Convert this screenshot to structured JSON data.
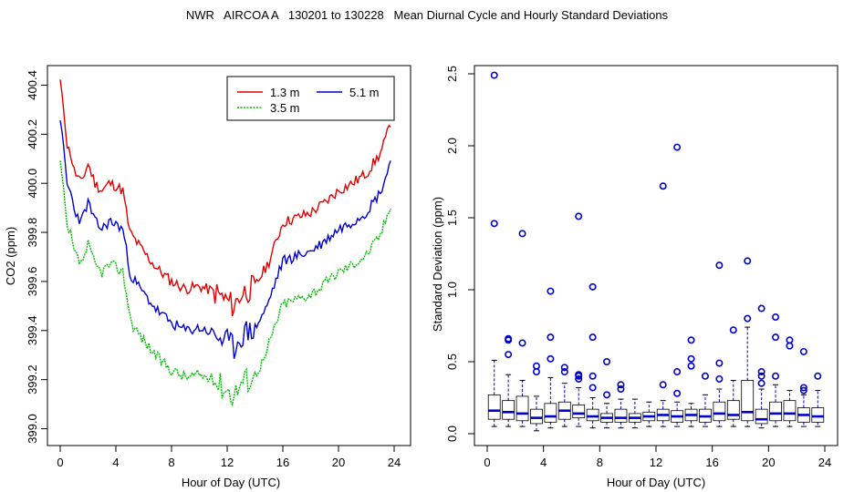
{
  "title": "NWR   AIRCOA A   130201 to 130228   Mean Diurnal Cycle and Hourly Standard Deviations",
  "colors": {
    "red": "#e00000",
    "blue": "#0000cc",
    "green": "#00bb00",
    "box": "#0000cc",
    "axis": "#000000"
  },
  "chart_data": [
    {
      "type": "line",
      "xlabel": "Hour of Day (UTC)",
      "ylabel": "CO2 (ppm)",
      "xlim": [
        0,
        24
      ],
      "ylim": [
        398.95,
        400.45
      ],
      "xticks": [
        "0",
        "4",
        "8",
        "12",
        "16",
        "20",
        "24"
      ],
      "yticks": [
        "399.0",
        "399.2",
        "399.4",
        "399.6",
        "399.8",
        "400.0",
        "400.2",
        "400.4"
      ],
      "legend": {
        "position": "top-right",
        "entries": [
          "1.3 m",
          "5.1 m",
          "3.5 m"
        ]
      },
      "anchors": [
        [
          0.0,
          400.42
        ],
        [
          0.25,
          400.3
        ],
        [
          0.5,
          400.15
        ],
        [
          0.75,
          400.12
        ],
        [
          1.0,
          400.05
        ],
        [
          1.5,
          400.0
        ],
        [
          2.0,
          400.08
        ],
        [
          2.5,
          400.0
        ],
        [
          3.0,
          399.97
        ],
        [
          3.5,
          400.0
        ],
        [
          4.0,
          399.99
        ],
        [
          4.5,
          399.97
        ],
        [
          5.0,
          399.8
        ],
        [
          6.0,
          399.72
        ],
        [
          7.0,
          399.65
        ],
        [
          8.0,
          399.6
        ],
        [
          9.0,
          399.57
        ],
        [
          10.0,
          399.58
        ],
        [
          11.0,
          399.56
        ],
        [
          12.0,
          399.52
        ],
        [
          12.5,
          399.5
        ],
        [
          13.0,
          399.55
        ],
        [
          14.0,
          399.58
        ],
        [
          15.0,
          399.68
        ],
        [
          16.0,
          399.84
        ],
        [
          17.0,
          399.86
        ],
        [
          18.0,
          399.88
        ],
        [
          19.0,
          399.92
        ],
        [
          20.0,
          399.97
        ],
        [
          21.0,
          400.0
        ],
        [
          22.0,
          400.04
        ],
        [
          23.0,
          400.12
        ],
        [
          23.5,
          400.2
        ],
        [
          23.75,
          400.25
        ]
      ],
      "series": [
        {
          "name": "1.3 m",
          "color": "#e00000",
          "offset": 0.0,
          "seed": 11
        },
        {
          "name": "5.1 m",
          "color": "#0000cc",
          "offset": -0.17,
          "seed": 23
        },
        {
          "name": "3.5 m",
          "color": "#00bb00",
          "offset": -0.36,
          "seed": 37
        }
      ]
    },
    {
      "type": "boxplot",
      "xlabel": "Hour of Day (UTC)",
      "ylabel": "Standard Deviation (ppm)",
      "xlim": [
        0,
        24
      ],
      "ylim": [
        -0.05,
        2.6
      ],
      "xticks": [
        "0",
        "4",
        "8",
        "12",
        "16",
        "20",
        "24"
      ],
      "yticks": [
        "0.0",
        "0.5",
        "1.0",
        "1.5",
        "2.0",
        "2.5"
      ],
      "boxes": [
        {
          "hour": 0.5,
          "min": 0.05,
          "q1": 0.1,
          "median": 0.16,
          "q3": 0.27,
          "max": 0.51,
          "outliers": [
            1.46,
            2.49
          ]
        },
        {
          "hour": 1.5,
          "min": 0.05,
          "q1": 0.1,
          "median": 0.15,
          "q3": 0.23,
          "max": 0.41,
          "outliers": [
            0.55,
            0.65,
            0.66
          ]
        },
        {
          "hour": 2.5,
          "min": 0.05,
          "q1": 0.09,
          "median": 0.14,
          "q3": 0.26,
          "max": 0.37,
          "outliers": [
            0.63,
            1.39
          ]
        },
        {
          "hour": 3.5,
          "min": 0.02,
          "q1": 0.07,
          "median": 0.11,
          "q3": 0.17,
          "max": 0.26,
          "outliers": [
            0.43,
            0.47
          ]
        },
        {
          "hour": 4.5,
          "min": 0.04,
          "q1": 0.08,
          "median": 0.12,
          "q3": 0.21,
          "max": 0.39,
          "outliers": [
            0.52,
            0.67,
            0.99
          ]
        },
        {
          "hour": 5.5,
          "min": 0.05,
          "q1": 0.1,
          "median": 0.16,
          "q3": 0.22,
          "max": 0.35,
          "outliers": [
            0.43,
            0.46
          ]
        },
        {
          "hour": 6.5,
          "min": 0.05,
          "q1": 0.11,
          "median": 0.14,
          "q3": 0.2,
          "max": 0.32,
          "outliers": [
            0.38,
            0.4,
            0.41,
            1.51
          ]
        },
        {
          "hour": 7.5,
          "min": 0.04,
          "q1": 0.09,
          "median": 0.12,
          "q3": 0.17,
          "max": 0.25,
          "outliers": [
            0.32,
            0.4,
            0.67,
            1.02
          ]
        },
        {
          "hour": 8.5,
          "min": 0.04,
          "q1": 0.08,
          "median": 0.11,
          "q3": 0.14,
          "max": 0.21,
          "outliers": [
            0.27,
            0.5
          ]
        },
        {
          "hour": 9.5,
          "min": 0.04,
          "q1": 0.08,
          "median": 0.11,
          "q3": 0.17,
          "max": 0.24,
          "outliers": [
            0.31,
            0.34
          ]
        },
        {
          "hour": 10.5,
          "min": 0.04,
          "q1": 0.08,
          "median": 0.11,
          "q3": 0.14,
          "max": 0.24,
          "outliers": []
        },
        {
          "hour": 11.5,
          "min": 0.05,
          "q1": 0.09,
          "median": 0.12,
          "q3": 0.15,
          "max": 0.22,
          "outliers": []
        },
        {
          "hour": 12.5,
          "min": 0.05,
          "q1": 0.09,
          "median": 0.13,
          "q3": 0.17,
          "max": 0.23,
          "outliers": [
            0.34,
            1.72
          ]
        },
        {
          "hour": 13.5,
          "min": 0.05,
          "q1": 0.08,
          "median": 0.12,
          "q3": 0.16,
          "max": 0.22,
          "outliers": [
            0.28,
            0.43,
            1.99
          ]
        },
        {
          "hour": 14.5,
          "min": 0.05,
          "q1": 0.09,
          "median": 0.13,
          "q3": 0.17,
          "max": 0.21,
          "outliers": [
            0.47,
            0.52,
            0.65
          ]
        },
        {
          "hour": 15.5,
          "min": 0.05,
          "q1": 0.08,
          "median": 0.12,
          "q3": 0.17,
          "max": 0.27,
          "outliers": [
            0.4
          ]
        },
        {
          "hour": 16.5,
          "min": 0.05,
          "q1": 0.09,
          "median": 0.14,
          "q3": 0.22,
          "max": 0.31,
          "outliers": [
            0.38,
            0.49,
            1.17
          ]
        },
        {
          "hour": 17.5,
          "min": 0.05,
          "q1": 0.1,
          "median": 0.13,
          "q3": 0.23,
          "max": 0.37,
          "outliers": [
            0.72
          ]
        },
        {
          "hour": 18.5,
          "min": 0.05,
          "q1": 0.09,
          "median": 0.15,
          "q3": 0.37,
          "max": 0.74,
          "outliers": [
            0.8,
            1.2
          ]
        },
        {
          "hour": 19.5,
          "min": 0.04,
          "q1": 0.07,
          "median": 0.1,
          "q3": 0.17,
          "max": 0.31,
          "outliers": [
            0.35,
            0.4,
            0.43,
            0.87
          ]
        },
        {
          "hour": 20.5,
          "min": 0.05,
          "q1": 0.09,
          "median": 0.14,
          "q3": 0.22,
          "max": 0.34,
          "outliers": [
            0.4,
            0.67,
            0.81
          ]
        },
        {
          "hour": 21.5,
          "min": 0.05,
          "q1": 0.09,
          "median": 0.14,
          "q3": 0.23,
          "max": 0.3,
          "outliers": [
            0.61,
            0.65
          ]
        },
        {
          "hour": 22.5,
          "min": 0.05,
          "q1": 0.08,
          "median": 0.13,
          "q3": 0.18,
          "max": 0.27,
          "outliers": [
            0.3,
            0.32,
            0.57
          ]
        },
        {
          "hour": 23.5,
          "min": 0.05,
          "q1": 0.08,
          "median": 0.12,
          "q3": 0.18,
          "max": 0.3,
          "outliers": [
            0.4
          ]
        }
      ]
    }
  ]
}
